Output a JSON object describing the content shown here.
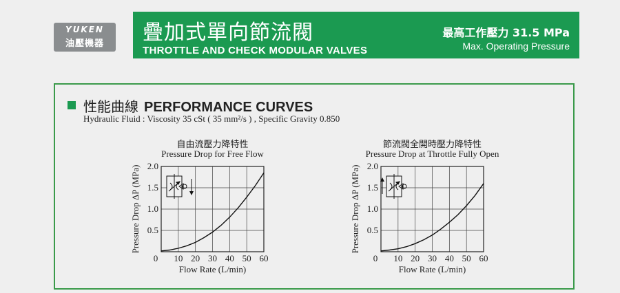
{
  "logo": {
    "brand": "YUKEN",
    "sub": "油壓機器"
  },
  "header": {
    "title_zh": "疊加式單向節流閥",
    "title_en": "THROTTLE AND CHECK MODULAR VALVES",
    "pressure": "最高工作壓力  31.5 MPa",
    "pressure_label": "Max. Operating Pressure",
    "accent_color": "#1b9a51"
  },
  "section": {
    "title_zh": "性能曲線",
    "title_en": "PERFORMANCE CURVES",
    "fluid": "Hydraulic Fluid : Viscosity 35 cSt ( 35 mm²/s ) , Specific Gravity 0.850"
  },
  "chart_data": [
    {
      "type": "line",
      "title_zh": "自由流壓力降特性",
      "title": "Pressure Drop for Free Flow",
      "xlabel": "Flow Rate (L/min)",
      "ylabel": "Pressure Drop ΔP (MPa)",
      "xlim": [
        0,
        60
      ],
      "ylim": [
        0,
        2.0
      ],
      "xticks": [
        "0",
        "10",
        "20",
        "30",
        "40",
        "50",
        "60"
      ],
      "yticks": [
        "0.5",
        "1.0",
        "1.5",
        "2.0"
      ],
      "grid": true,
      "symbol": "check-free-flow",
      "series": [
        {
          "x": [
            0,
            5,
            10,
            15,
            20,
            25,
            30,
            35,
            40,
            45,
            50,
            55,
            60
          ],
          "y": [
            0.02,
            0.04,
            0.08,
            0.14,
            0.22,
            0.33,
            0.46,
            0.62,
            0.81,
            1.03,
            1.28,
            1.55,
            1.85
          ]
        }
      ]
    },
    {
      "type": "line",
      "title_zh": "節流閥全開時壓力降特性",
      "title": "Pressure Drop at Throttle Fully Open",
      "xlabel": "Flow Rate (L/min)",
      "ylabel": "Pressure Drop ΔP (MPa)",
      "xlim": [
        0,
        60
      ],
      "ylim": [
        0,
        2.0
      ],
      "xticks": [
        "0",
        "10",
        "20",
        "30",
        "40",
        "50",
        "60"
      ],
      "yticks": [
        "0.5",
        "1.0",
        "1.5",
        "2.0"
      ],
      "grid": true,
      "symbol": "throttle-open",
      "series": [
        {
          "x": [
            0,
            5,
            10,
            15,
            20,
            25,
            30,
            35,
            40,
            45,
            50,
            55,
            60
          ],
          "y": [
            0.02,
            0.04,
            0.07,
            0.12,
            0.19,
            0.28,
            0.39,
            0.53,
            0.69,
            0.87,
            1.08,
            1.32,
            1.6
          ]
        }
      ]
    }
  ]
}
